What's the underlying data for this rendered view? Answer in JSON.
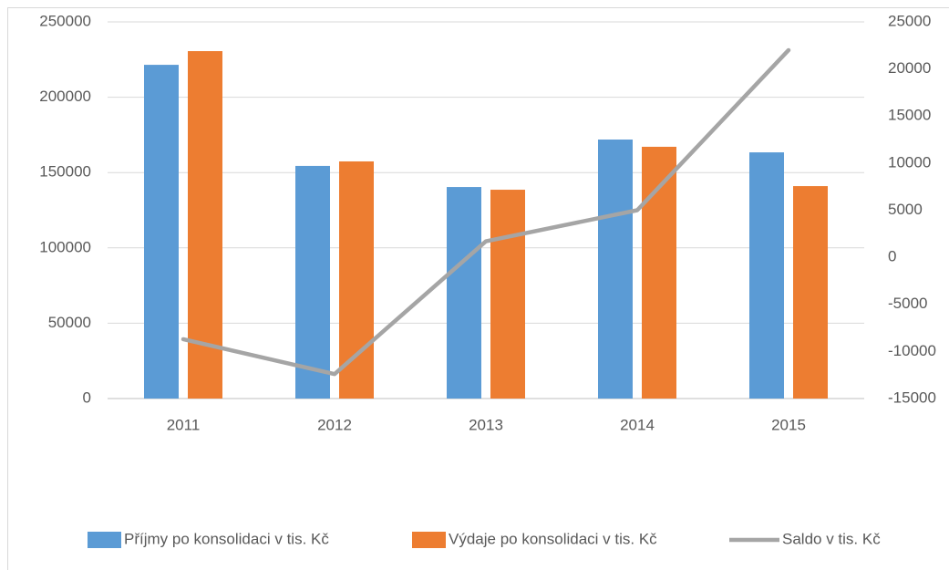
{
  "chart_data": {
    "type": "bar_line",
    "categories": [
      "2011",
      "2012",
      "2013",
      "2014",
      "2015"
    ],
    "series": [
      {
        "name": "Příjmy po konsolidaci v tis. Kč",
        "color": "#5b9bd5",
        "type": "bar",
        "values": [
          221500,
          154400,
          140400,
          171900,
          163400
        ]
      },
      {
        "name": "Výdaje po konsolidaci v tis. Kč",
        "color": "#ed7d31",
        "type": "bar",
        "values": [
          230600,
          157400,
          138600,
          167100,
          141000
        ]
      },
      {
        "name": "Saldo v tis. Kč",
        "color": "#a5a5a5",
        "type": "line",
        "axis": "y2",
        "values": [
          -8700,
          -12400,
          1700,
          5000,
          22000
        ]
      }
    ],
    "ylim": [
      0,
      250000
    ],
    "yticks": [
      0,
      50000,
      100000,
      150000,
      200000,
      250000
    ],
    "y2lim": [
      -15000,
      25000
    ],
    "y2ticks": [
      -15000,
      -10000,
      -5000,
      0,
      5000,
      10000,
      15000,
      20000,
      25000
    ],
    "grid": true,
    "legend": "bottom"
  }
}
